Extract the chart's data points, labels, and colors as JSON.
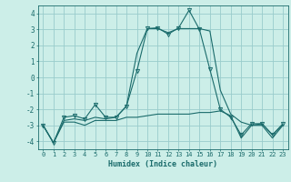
{
  "xlabel": "Humidex (Indice chaleur)",
  "bg_color": "#cceee8",
  "grid_color": "#99cccc",
  "line_color": "#1a6b6b",
  "xlim": [
    -0.5,
    23.5
  ],
  "ylim": [
    -4.5,
    4.5
  ],
  "yticks": [
    -4,
    -3,
    -2,
    -1,
    0,
    1,
    2,
    3,
    4
  ],
  "xticks": [
    0,
    1,
    2,
    3,
    4,
    5,
    6,
    7,
    8,
    9,
    10,
    11,
    12,
    13,
    14,
    15,
    16,
    17,
    18,
    19,
    20,
    21,
    22,
    23
  ],
  "series": [
    {
      "x": [
        0,
        1,
        2,
        3,
        4,
        5,
        6,
        7,
        8,
        9,
        10,
        11,
        12,
        13,
        14,
        15,
        16,
        17,
        18,
        19,
        20,
        21,
        22,
        23
      ],
      "y": [
        -3.0,
        -4.1,
        -2.5,
        -2.4,
        -2.6,
        -1.7,
        -2.5,
        -2.5,
        -1.8,
        0.4,
        3.05,
        3.1,
        2.7,
        3.1,
        4.2,
        3.0,
        0.5,
        -2.0,
        -2.5,
        -3.6,
        -2.9,
        -2.9,
        -3.6,
        -2.9
      ],
      "marker": "v",
      "markersize": 3,
      "linewidth": 0.8
    },
    {
      "x": [
        0,
        1,
        2,
        3,
        4,
        5,
        6,
        7,
        8,
        9,
        10,
        11,
        12,
        13,
        14,
        15,
        16,
        17,
        18,
        19,
        20,
        21,
        22,
        23
      ],
      "y": [
        -3.0,
        -4.1,
        -2.7,
        -2.6,
        -2.7,
        -2.5,
        -2.6,
        -2.5,
        -1.8,
        1.5,
        3.05,
        3.05,
        2.8,
        3.05,
        3.05,
        3.05,
        2.9,
        -0.8,
        -2.3,
        -2.8,
        -3.0,
        -2.9,
        -3.6,
        -3.0
      ],
      "marker": null,
      "linewidth": 0.8
    },
    {
      "x": [
        0,
        1,
        2,
        3,
        4,
        5,
        6,
        7,
        8,
        9,
        10,
        11,
        12,
        13,
        14,
        15,
        16,
        17,
        18,
        19,
        20,
        21,
        22,
        23
      ],
      "y": [
        -3.0,
        -4.1,
        -2.8,
        -2.8,
        -3.0,
        -2.7,
        -2.7,
        -2.7,
        -2.5,
        -2.5,
        -2.4,
        -2.3,
        -2.3,
        -2.3,
        -2.3,
        -2.2,
        -2.2,
        -2.1,
        -2.4,
        -3.8,
        -3.0,
        -3.0,
        -3.8,
        -3.0
      ],
      "marker": null,
      "linewidth": 0.8
    }
  ]
}
